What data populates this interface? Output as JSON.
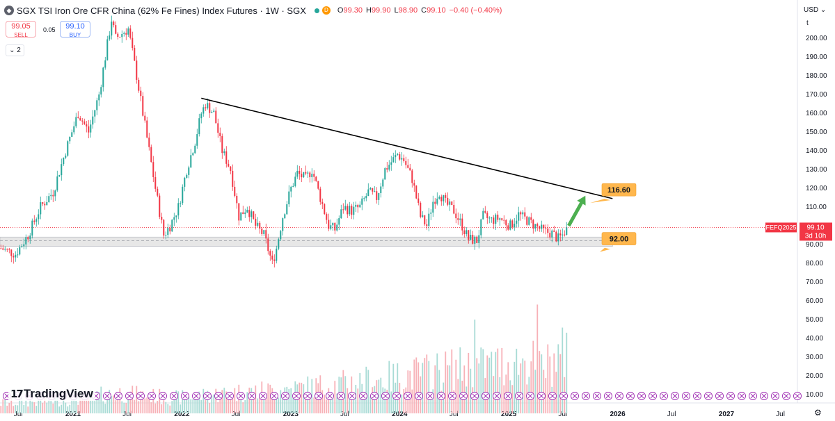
{
  "header": {
    "title": "SGX TSI Iron Ore CFR China (62% Fe Fines) Index Futures · 1W · SGX",
    "delayed_badge": "D",
    "open": "99.30",
    "high": "99.90",
    "low": "98.90",
    "close": "99.10",
    "change": "−0.40 (−0.40%)"
  },
  "trade": {
    "sell_price": "99.05",
    "sell_label": "SELL",
    "spread": "0.05",
    "buy_price": "99.10",
    "buy_label": "BUY"
  },
  "collapse_label": "2",
  "currency": "USD",
  "scale_mode": "t",
  "logo": "TradingView",
  "colors": {
    "up": "#26a69a",
    "down": "#f23645",
    "up_vol": "#a8dbd5",
    "down_vol": "#f7b1b7",
    "annotation": "#ffb74d",
    "arrow": "#4caf50"
  },
  "chart_data": {
    "type": "candlestick",
    "timeframe": "1W",
    "y_axis": {
      "min": 0,
      "max": 210,
      "ticks": [
        10,
        20,
        30,
        40,
        50,
        60,
        70,
        80,
        90,
        100,
        110,
        120,
        130,
        140,
        150,
        160,
        170,
        180,
        190,
        200
      ]
    },
    "x_axis": {
      "start": "2020-05",
      "end": "2027-10",
      "labels": [
        "Jul",
        "2021",
        "Jul",
        "2022",
        "Jul",
        "2023",
        "Jul",
        "2024",
        "Jul",
        "2025",
        "Jul",
        "2026",
        "Jul",
        "2027",
        "Jul"
      ]
    },
    "price_waypoints": [
      [
        "2020-05-04",
        88
      ],
      [
        "2020-06-22",
        85
      ],
      [
        "2020-08-03",
        95
      ],
      [
        "2020-09-14",
        110
      ],
      [
        "2020-10-26",
        118
      ],
      [
        "2020-12-07",
        140
      ],
      [
        "2021-01-18",
        160
      ],
      [
        "2021-02-22",
        150
      ],
      [
        "2021-03-29",
        170
      ],
      [
        "2021-04-19",
        190
      ],
      [
        "2021-05-10",
        210
      ],
      [
        "2021-05-24",
        200
      ],
      [
        "2021-07-05",
        205
      ],
      [
        "2021-08-02",
        180
      ],
      [
        "2021-08-23",
        160
      ],
      [
        "2021-09-13",
        140
      ],
      [
        "2021-10-04",
        120
      ],
      [
        "2021-11-01",
        95
      ],
      [
        "2021-11-22",
        100
      ],
      [
        "2021-12-20",
        110
      ],
      [
        "2022-01-17",
        130
      ],
      [
        "2022-02-14",
        145
      ],
      [
        "2022-03-07",
        160
      ],
      [
        "2022-03-21",
        165
      ],
      [
        "2022-04-18",
        160
      ],
      [
        "2022-05-16",
        140
      ],
      [
        "2022-06-13",
        130
      ],
      [
        "2022-07-11",
        105
      ],
      [
        "2022-08-08",
        110
      ],
      [
        "2022-09-05",
        100
      ],
      [
        "2022-10-03",
        95
      ],
      [
        "2022-10-31",
        80
      ],
      [
        "2022-11-14",
        88
      ],
      [
        "2022-12-05",
        105
      ],
      [
        "2023-01-02",
        120
      ],
      [
        "2023-01-23",
        128
      ],
      [
        "2023-02-20",
        125
      ],
      [
        "2023-03-13",
        130
      ],
      [
        "2023-04-10",
        115
      ],
      [
        "2023-05-08",
        100
      ],
      [
        "2023-05-29",
        98
      ],
      [
        "2023-06-26",
        110
      ],
      [
        "2023-07-24",
        108
      ],
      [
        "2023-08-21",
        110
      ],
      [
        "2023-09-18",
        118
      ],
      [
        "2023-10-16",
        115
      ],
      [
        "2023-11-13",
        130
      ],
      [
        "2023-12-25",
        138
      ],
      [
        "2024-01-15",
        135
      ],
      [
        "2024-02-12",
        125
      ],
      [
        "2024-03-11",
        105
      ],
      [
        "2024-04-01",
        100
      ],
      [
        "2024-04-22",
        113
      ],
      [
        "2024-05-13",
        118
      ],
      [
        "2024-06-03",
        112
      ],
      [
        "2024-07-01",
        108
      ],
      [
        "2024-07-29",
        100
      ],
      [
        "2024-08-19",
        93
      ],
      [
        "2024-09-16",
        92
      ],
      [
        "2024-10-07",
        105
      ],
      [
        "2024-11-04",
        103
      ],
      [
        "2024-12-02",
        104
      ],
      [
        "2025-01-06",
        100
      ],
      [
        "2025-02-03",
        106
      ],
      [
        "2025-03-03",
        103
      ],
      [
        "2025-03-31",
        100
      ],
      [
        "2025-04-28",
        97
      ],
      [
        "2025-05-26",
        96
      ],
      [
        "2025-06-16",
        93
      ],
      [
        "2025-06-30",
        95
      ],
      [
        "2025-07-14",
        99.1
      ]
    ],
    "volume_waypoints": [
      [
        "2020-05-04",
        6
      ],
      [
        "2020-12-07",
        8
      ],
      [
        "2021-06-07",
        12
      ],
      [
        "2021-12-06",
        9
      ],
      [
        "2022-06-06",
        12
      ],
      [
        "2022-12-05",
        14
      ],
      [
        "2023-06-05",
        17
      ],
      [
        "2023-12-04",
        21
      ],
      [
        "2024-06-03",
        26
      ],
      [
        "2024-12-02",
        29
      ],
      [
        "2025-03-03",
        31
      ],
      [
        "2025-05-05",
        28
      ],
      [
        "2025-07-14",
        36
      ]
    ],
    "volume_spikes": [
      [
        "2024-09-09",
        50
      ],
      [
        "2025-04-07",
        58
      ],
      [
        "2025-07-14",
        43
      ]
    ],
    "trendline": {
      "from": [
        "2022-03-07",
        168
      ],
      "to": [
        "2025-12-15",
        114.5
      ]
    },
    "support_zone": {
      "from": "2020-05-01",
      "to": "2025-12-15",
      "low": 89,
      "high": 94
    },
    "support_mid": 92,
    "annotations": [
      {
        "label": "116.60",
        "value": 116.6
      },
      {
        "label": "92.00",
        "value": 92.0
      }
    ],
    "arrow": {
      "from": [
        "2025-07-21",
        100
      ],
      "to": [
        "2025-09-15",
        116
      ]
    },
    "last_price": {
      "symbol": "FEFQ2025",
      "price": "99.10",
      "countdown": "3d 10h",
      "value": 99.1
    }
  }
}
